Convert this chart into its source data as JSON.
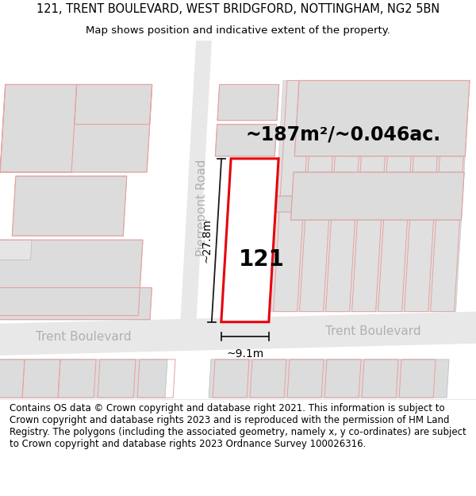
{
  "title": "121, TRENT BOULEVARD, WEST BRIDGFORD, NOTTINGHAM, NG2 5BN",
  "subtitle": "Map shows position and indicative extent of the property.",
  "footer": "Contains OS data © Crown copyright and database right 2021. This information is subject to Crown copyright and database rights 2023 and is reproduced with the permission of HM Land Registry. The polygons (including the associated geometry, namely x, y co-ordinates) are subject to Crown copyright and database rights 2023 Ordnance Survey 100026316.",
  "title_fontsize": 10.5,
  "subtitle_fontsize": 9.5,
  "footer_fontsize": 8.5,
  "map_bg": "#f2f2f2",
  "road_color": "#ffffff",
  "building_fill": "#dcdcdc",
  "building_edge": "#c0c0c0",
  "highlight_fill": "#ffffff",
  "highlight_edge": "#e8000a",
  "pink_outline_color": "#e8a0a0",
  "dim_line_color": "#1a1a1a",
  "label_121_fontsize": 20,
  "area_text": "~187m²/~0.046ac.",
  "area_fontsize": 17,
  "dim_width_text": "~9.1m",
  "dim_height_text": "~27.8m",
  "dim_fontsize": 10,
  "street_label_1": "Pierrepont Road",
  "street_label_2a": "Trent Boulevard",
  "street_label_2b": "Trent Boulevard",
  "street_label_fontsize": 11,
  "street_label_color": "#b0b0b0"
}
